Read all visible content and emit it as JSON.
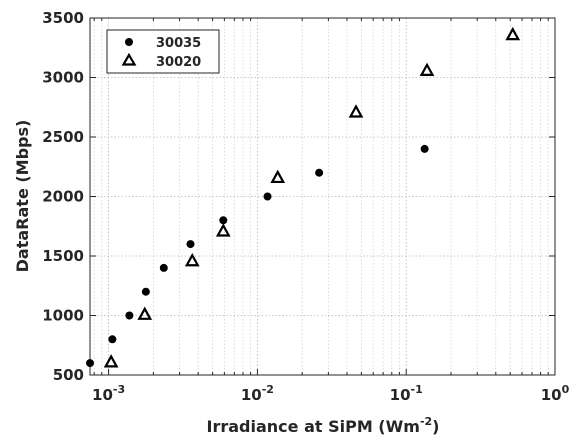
{
  "chart_data": {
    "type": "scatter",
    "title": "",
    "xlabel": "Irradiance at SiPM (Wm",
    "xlabel_superscript": "-2",
    "xlabel_suffix": ")",
    "ylabel": "DataRate (Mbps)",
    "x_scale": "log",
    "xlim": [
      0.00075,
      1
    ],
    "ylim": [
      500,
      3500
    ],
    "x_ticks": [
      {
        "value": 0.001,
        "base": "10",
        "exp": "-3"
      },
      {
        "value": 0.01,
        "base": "10",
        "exp": "-2"
      },
      {
        "value": 0.1,
        "base": "10",
        "exp": "-1"
      },
      {
        "value": 1,
        "base": "10",
        "exp": "0"
      }
    ],
    "y_ticks": [
      {
        "value": 500,
        "label": "500"
      },
      {
        "value": 1000,
        "label": "1000"
      },
      {
        "value": 1500,
        "label": "1500"
      },
      {
        "value": 2000,
        "label": "2000"
      },
      {
        "value": 2500,
        "label": "2500"
      },
      {
        "value": 3000,
        "label": "3000"
      },
      {
        "value": 3500,
        "label": "3500"
      }
    ],
    "grid": true,
    "legend_position": "top-left",
    "series": [
      {
        "name": "30035",
        "marker": "dot",
        "color": "#000000",
        "points": [
          {
            "x": 0.00075,
            "y": 600
          },
          {
            "x": 0.00106,
            "y": 800
          },
          {
            "x": 0.00138,
            "y": 1000
          },
          {
            "x": 0.00178,
            "y": 1200
          },
          {
            "x": 0.00235,
            "y": 1400
          },
          {
            "x": 0.00355,
            "y": 1600
          },
          {
            "x": 0.0059,
            "y": 1800
          },
          {
            "x": 0.0117,
            "y": 2000
          },
          {
            "x": 0.026,
            "y": 2200
          },
          {
            "x": 0.133,
            "y": 2400
          }
        ]
      },
      {
        "name": "30020",
        "marker": "triangle",
        "color": "#000000",
        "points": [
          {
            "x": 0.00104,
            "y": 610
          },
          {
            "x": 0.00175,
            "y": 1010
          },
          {
            "x": 0.00365,
            "y": 1460
          },
          {
            "x": 0.0059,
            "y": 1710
          },
          {
            "x": 0.0137,
            "y": 2160
          },
          {
            "x": 0.046,
            "y": 2710
          },
          {
            "x": 0.138,
            "y": 3060
          },
          {
            "x": 0.52,
            "y": 3360
          }
        ]
      }
    ]
  }
}
